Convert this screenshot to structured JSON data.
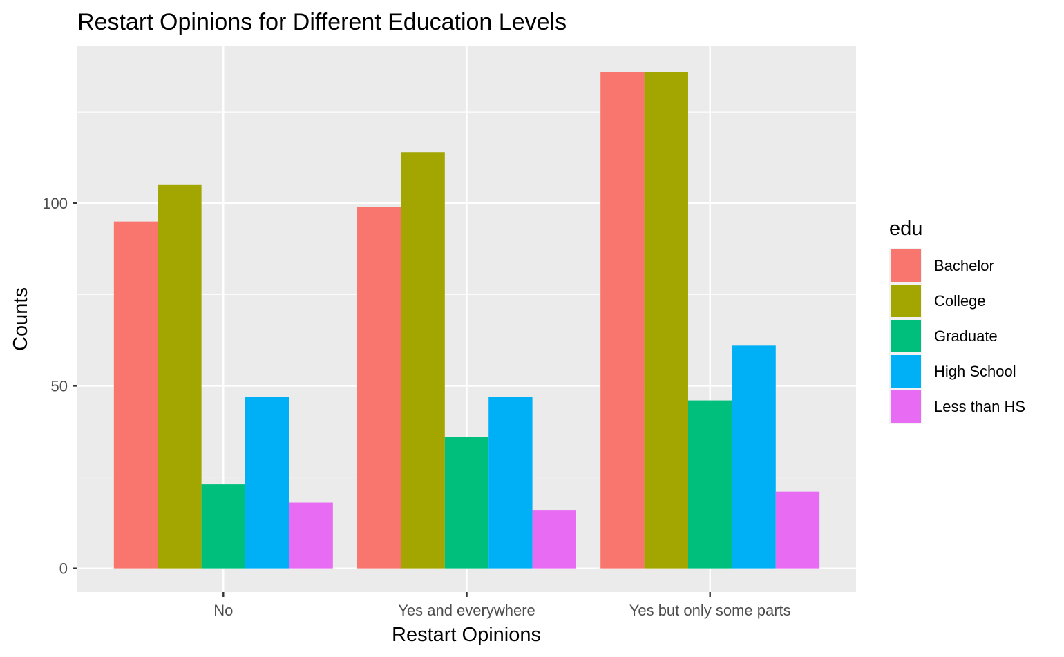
{
  "chart_data": {
    "type": "bar",
    "title": "Restart Opinions for Different Education Levels",
    "xlabel": "Restart Opinions",
    "ylabel": "Counts",
    "categories": [
      "No",
      "Yes and everywhere",
      "Yes but only some parts"
    ],
    "ylim": [
      -6.5,
      143
    ],
    "yticks": [
      0,
      50,
      100
    ],
    "ytick_labels": [
      "0",
      "50",
      "100"
    ],
    "grid": true,
    "legend": {
      "title": "edu",
      "position": "right"
    },
    "series": [
      {
        "name": "Bachelor",
        "color": "#F8766D",
        "values": [
          95,
          99,
          136
        ]
      },
      {
        "name": "College",
        "color": "#A3A500",
        "values": [
          105,
          114,
          136
        ]
      },
      {
        "name": "Graduate",
        "color": "#00BF7D",
        "values": [
          23,
          36,
          46
        ]
      },
      {
        "name": "High School",
        "color": "#00B0F6",
        "values": [
          47,
          47,
          61
        ]
      },
      {
        "name": "Less than HS",
        "color": "#E76BF3",
        "values": [
          18,
          16,
          21
        ]
      }
    ]
  }
}
